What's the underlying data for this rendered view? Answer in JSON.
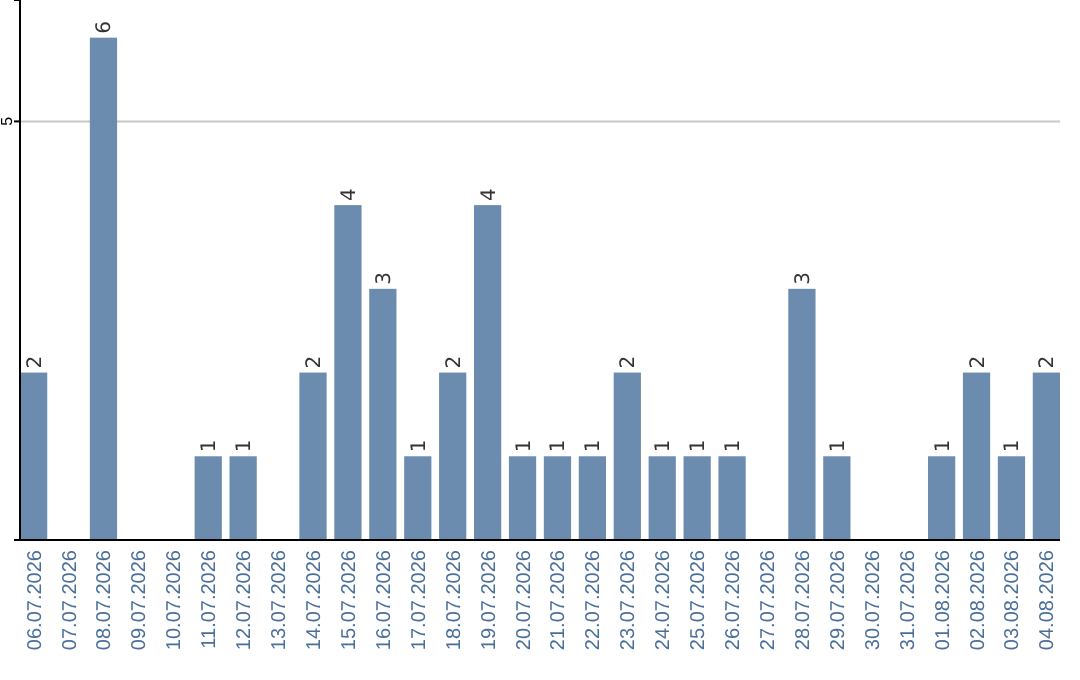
{
  "chart_data": {
    "type": "bar",
    "categories": [
      "06.07.2026",
      "07.07.2026",
      "08.07.2026",
      "09.07.2026",
      "10.07.2026",
      "11.07.2026",
      "12.07.2026",
      "13.07.2026",
      "14.07.2026",
      "15.07.2026",
      "16.07.2026",
      "17.07.2026",
      "18.07.2026",
      "19.07.2026",
      "20.07.2026",
      "21.07.2026",
      "22.07.2026",
      "23.07.2026",
      "24.07.2026",
      "25.07.2026",
      "26.07.2026",
      "27.07.2026",
      "28.07.2026",
      "29.07.2026",
      "30.07.2026",
      "31.07.2026",
      "01.08.2026",
      "02.08.2026",
      "03.08.2026",
      "04.08.2026"
    ],
    "values": [
      2,
      0,
      6,
      0,
      0,
      1,
      1,
      0,
      2,
      4,
      3,
      1,
      2,
      4,
      1,
      1,
      1,
      2,
      1,
      1,
      1,
      0,
      3,
      1,
      0,
      0,
      1,
      2,
      1,
      2
    ],
    "value_labels": [
      "2",
      null,
      "6",
      null,
      null,
      "1",
      "1",
      null,
      "2",
      "4",
      "3",
      "1",
      "2",
      "4",
      "1",
      "1",
      "1",
      "2",
      "1",
      "1",
      "1",
      null,
      "3",
      "1",
      null,
      null,
      "1",
      "2",
      "1",
      "2"
    ],
    "color": "#6b8cae",
    "ylim": [
      0,
      6.45
    ],
    "yticks": [
      5
    ],
    "grid": "y"
  }
}
